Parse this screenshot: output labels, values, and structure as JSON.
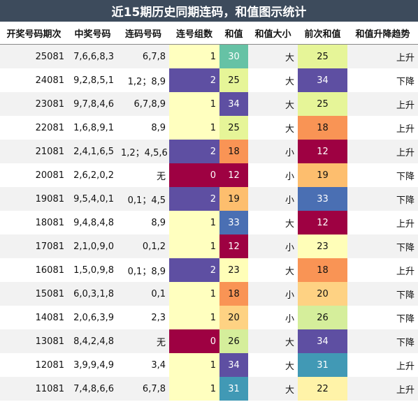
{
  "title": "近15期历史同期连码，和值图示统计",
  "headers": [
    "开奖号码期次",
    "中奖号码",
    "连码号码",
    "连号组数",
    "和值",
    "和值大小",
    "前次和值",
    "和值升降趋势"
  ],
  "rows": [
    {
      "period": "25081",
      "nums": "7,6,6,8,3",
      "lian": "6,7,8",
      "groups": "1",
      "sum": "30",
      "size": "大",
      "prev": "25",
      "trend": "上升",
      "groups_bg": "#ffffbf",
      "sum_bg": "#66c2a5",
      "prev_bg": "#e6f598"
    },
    {
      "period": "24081",
      "nums": "9,2,8,5,1",
      "lian": "1,2；8,9",
      "groups": "2",
      "sum": "25",
      "size": "大",
      "prev": "34",
      "trend": "下降",
      "groups_bg": "#5e4fa2",
      "sum_bg": "#e6f598",
      "prev_bg": "#5e4fa2"
    },
    {
      "period": "23081",
      "nums": "9,7,8,4,6",
      "lian": "6,7,8,9",
      "groups": "1",
      "sum": "34",
      "size": "大",
      "prev": "25",
      "trend": "上升",
      "groups_bg": "#ffffbf",
      "sum_bg": "#5e4fa2",
      "prev_bg": "#e6f598"
    },
    {
      "period": "22081",
      "nums": "1,6,8,9,1",
      "lian": "8,9",
      "groups": "1",
      "sum": "25",
      "size": "大",
      "prev": "18",
      "trend": "上升",
      "groups_bg": "#ffffbf",
      "sum_bg": "#e6f598",
      "prev_bg": "#f99455"
    },
    {
      "period": "21081",
      "nums": "2,4,1,6,5",
      "lian": "1,2；4,5,6",
      "groups": "2",
      "sum": "18",
      "size": "小",
      "prev": "12",
      "trend": "上升",
      "groups_bg": "#5e4fa2",
      "sum_bg": "#f99455",
      "prev_bg": "#9e0142"
    },
    {
      "period": "20081",
      "nums": "2,6,2,0,2",
      "lian": "无",
      "groups": "0",
      "sum": "12",
      "size": "小",
      "prev": "19",
      "trend": "下降",
      "groups_bg": "#9e0142",
      "sum_bg": "#9e0142",
      "prev_bg": "#fdbe6e"
    },
    {
      "period": "19081",
      "nums": "9,5,4,0,1",
      "lian": "0,1；4,5",
      "groups": "2",
      "sum": "19",
      "size": "小",
      "prev": "33",
      "trend": "下降",
      "groups_bg": "#5e4fa2",
      "sum_bg": "#fdbe6e",
      "prev_bg": "#4a6fb3"
    },
    {
      "period": "18081",
      "nums": "9,4,8,4,8",
      "lian": "8,9",
      "groups": "1",
      "sum": "33",
      "size": "大",
      "prev": "12",
      "trend": "上升",
      "groups_bg": "#ffffbf",
      "sum_bg": "#4a6fb3",
      "prev_bg": "#9e0142"
    },
    {
      "period": "17081",
      "nums": "2,1,0,9,0",
      "lian": "0,1,2",
      "groups": "1",
      "sum": "12",
      "size": "小",
      "prev": "23",
      "trend": "下降",
      "groups_bg": "#ffffbf",
      "sum_bg": "#9e0142",
      "prev_bg": "#fffeb8"
    },
    {
      "period": "16081",
      "nums": "1,5,0,9,8",
      "lian": "0,1；8,9",
      "groups": "2",
      "sum": "23",
      "size": "大",
      "prev": "18",
      "trend": "上升",
      "groups_bg": "#5e4fa2",
      "sum_bg": "#fffeb8",
      "prev_bg": "#f99455"
    },
    {
      "period": "15081",
      "nums": "6,0,3,1,8",
      "lian": "0,1",
      "groups": "1",
      "sum": "18",
      "size": "小",
      "prev": "20",
      "trend": "下降",
      "groups_bg": "#ffffbf",
      "sum_bg": "#f99455",
      "prev_bg": "#fed283"
    },
    {
      "period": "14081",
      "nums": "2,0,6,3,9",
      "lian": "2,3",
      "groups": "1",
      "sum": "20",
      "size": "小",
      "prev": "26",
      "trend": "下降",
      "groups_bg": "#ffffbf",
      "sum_bg": "#fed283",
      "prev_bg": "#d5ee9b"
    },
    {
      "period": "13081",
      "nums": "8,4,2,4,8",
      "lian": "无",
      "groups": "0",
      "sum": "26",
      "size": "大",
      "prev": "34",
      "trend": "下降",
      "groups_bg": "#9e0142",
      "sum_bg": "#d5ee9b",
      "prev_bg": "#5e4fa2"
    },
    {
      "period": "12081",
      "nums": "3,9,9,4,9",
      "lian": "3,4",
      "groups": "1",
      "sum": "34",
      "size": "大",
      "prev": "31",
      "trend": "上升",
      "groups_bg": "#ffffbf",
      "sum_bg": "#5e4fa2",
      "prev_bg": "#4199b5"
    },
    {
      "period": "11081",
      "nums": "7,4,8,6,6",
      "lian": "6,7,8",
      "groups": "1",
      "sum": "31",
      "size": "大",
      "prev": "22",
      "trend": "上升",
      "groups_bg": "#ffffbf",
      "sum_bg": "#4199b5",
      "prev_bg": "#fff3a8"
    }
  ]
}
